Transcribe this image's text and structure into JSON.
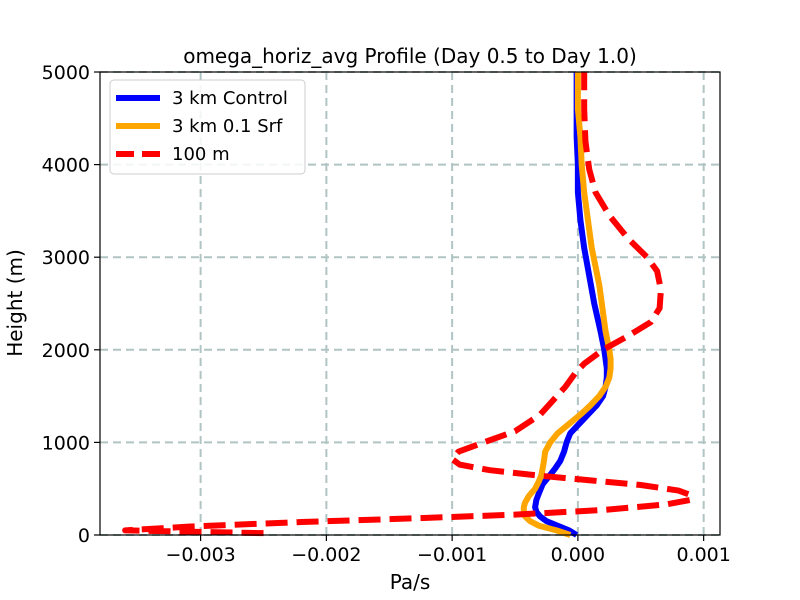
{
  "chart_data": {
    "type": "line",
    "title": "omega_horiz_avg Profile (Day 0.5 to Day 1.0)",
    "xlabel": "Pa/s",
    "ylabel": "Height (m)",
    "xlim": [
      -0.0038,
      0.00113
    ],
    "ylim": [
      0,
      5000
    ],
    "xticks": [
      -0.003,
      -0.002,
      -0.001,
      0.0,
      0.001
    ],
    "xtick_labels": [
      "−0.003",
      "−0.002",
      "−0.001",
      "0.000",
      "0.001"
    ],
    "yticks": [
      0,
      1000,
      2000,
      3000,
      4000,
      5000
    ],
    "ytick_labels": [
      "0",
      "1000",
      "2000",
      "3000",
      "4000",
      "5000"
    ],
    "grid": true,
    "legend_position": "top-left",
    "series": [
      {
        "name": "3 km Control",
        "color": "#0000ff",
        "style": "solid",
        "points": [
          [
            -1e-05,
            0
          ],
          [
            -7e-05,
            50
          ],
          [
            -0.00016,
            100
          ],
          [
            -0.00025,
            150
          ],
          [
            -0.0003,
            200
          ],
          [
            -0.00033,
            250
          ],
          [
            -0.00034,
            300
          ],
          [
            -0.00033,
            380
          ],
          [
            -0.00031,
            450
          ],
          [
            -0.00028,
            550
          ],
          [
            -0.00022,
            650
          ],
          [
            -0.00018,
            720
          ],
          [
            -0.00014,
            800
          ],
          [
            -0.00011,
            900
          ],
          [
            -9e-05,
            1000
          ],
          [
            -6e-05,
            1100
          ],
          [
            1e-05,
            1200
          ],
          [
            8e-05,
            1300
          ],
          [
            0.00015,
            1400
          ],
          [
            0.0002,
            1500
          ],
          [
            0.00022,
            1600
          ],
          [
            0.00023,
            1700
          ],
          [
            0.00023,
            1800
          ],
          [
            0.00022,
            1900
          ],
          [
            0.00021,
            2000
          ],
          [
            0.00018,
            2200
          ],
          [
            0.00013,
            2500
          ],
          [
            9e-05,
            2800
          ],
          [
            5e-05,
            3100
          ],
          [
            2e-05,
            3400
          ],
          [
            0.0,
            3700
          ],
          [
            0.0,
            4000
          ],
          [
            -1e-05,
            4300
          ],
          [
            -1e-05,
            4600
          ],
          [
            -1e-05,
            4900
          ],
          [
            -1e-05,
            5000
          ]
        ]
      },
      {
        "name": "3 km 0.1 Srf",
        "color": "#ffa500",
        "style": "solid",
        "points": [
          [
            -6e-05,
            0
          ],
          [
            -0.00017,
            50
          ],
          [
            -0.00031,
            100
          ],
          [
            -0.00038,
            150
          ],
          [
            -0.00042,
            200
          ],
          [
            -0.00043,
            250
          ],
          [
            -0.00043,
            300
          ],
          [
            -0.00042,
            350
          ],
          [
            -0.00039,
            420
          ],
          [
            -0.00034,
            500
          ],
          [
            -0.00031,
            580
          ],
          [
            -0.00029,
            650
          ],
          [
            -0.00028,
            720
          ],
          [
            -0.00027,
            800
          ],
          [
            -0.00026,
            900
          ],
          [
            -0.00022,
            1000
          ],
          [
            -0.00016,
            1100
          ],
          [
            -7e-05,
            1200
          ],
          [
            2e-05,
            1300
          ],
          [
            0.0001,
            1400
          ],
          [
            0.00017,
            1500
          ],
          [
            0.00022,
            1600
          ],
          [
            0.00025,
            1700
          ],
          [
            0.00026,
            1800
          ],
          [
            0.00026,
            1900
          ],
          [
            0.00025,
            2000
          ],
          [
            0.00022,
            2200
          ],
          [
            0.00019,
            2500
          ],
          [
            0.00017,
            2700
          ],
          [
            0.00014,
            2900
          ],
          [
            0.00011,
            3100
          ],
          [
            9e-05,
            3300
          ],
          [
            7e-05,
            3500
          ],
          [
            5e-05,
            3700
          ],
          [
            3e-05,
            4000
          ],
          [
            2e-05,
            4300
          ],
          [
            0.0,
            4600
          ],
          [
            0.0,
            4900
          ],
          [
            0.0,
            5000
          ]
        ]
      },
      {
        "name": "100 m",
        "color": "#ff0000",
        "style": "dashed",
        "points": [
          [
            -0.0025,
            20
          ],
          [
            -0.0036,
            50
          ],
          [
            -0.0031,
            90
          ],
          [
            -0.0022,
            140
          ],
          [
            -0.0013,
            180
          ],
          [
            -0.0005,
            220
          ],
          [
            0.0002,
            270
          ],
          [
            0.0007,
            330
          ],
          [
            0.0009,
            380
          ],
          [
            0.0009,
            430
          ],
          [
            0.0008,
            480
          ],
          [
            0.0005,
            540
          ],
          [
            0.0001,
            590
          ],
          [
            -0.0003,
            640
          ],
          [
            -0.0007,
            700
          ],
          [
            -0.00094,
            760
          ],
          [
            -0.001,
            820
          ],
          [
            -0.00095,
            900
          ],
          [
            -0.00075,
            1000
          ],
          [
            -0.0005,
            1120
          ],
          [
            -0.0003,
            1300
          ],
          [
            -0.0002,
            1450
          ],
          [
            -0.0001,
            1600
          ],
          [
            -2e-05,
            1750
          ],
          [
            5e-05,
            1850
          ],
          [
            0.0002,
            2000
          ],
          [
            0.0004,
            2150
          ],
          [
            0.00058,
            2300
          ],
          [
            0.00065,
            2450
          ],
          [
            0.00066,
            2650
          ],
          [
            0.00063,
            2850
          ],
          [
            0.00055,
            3000
          ],
          [
            0.0004,
            3200
          ],
          [
            0.00025,
            3450
          ],
          [
            0.00014,
            3700
          ],
          [
            9e-05,
            3950
          ],
          [
            6e-05,
            4250
          ],
          [
            5e-05,
            4600
          ],
          [
            5e-05,
            5000
          ]
        ]
      }
    ]
  }
}
